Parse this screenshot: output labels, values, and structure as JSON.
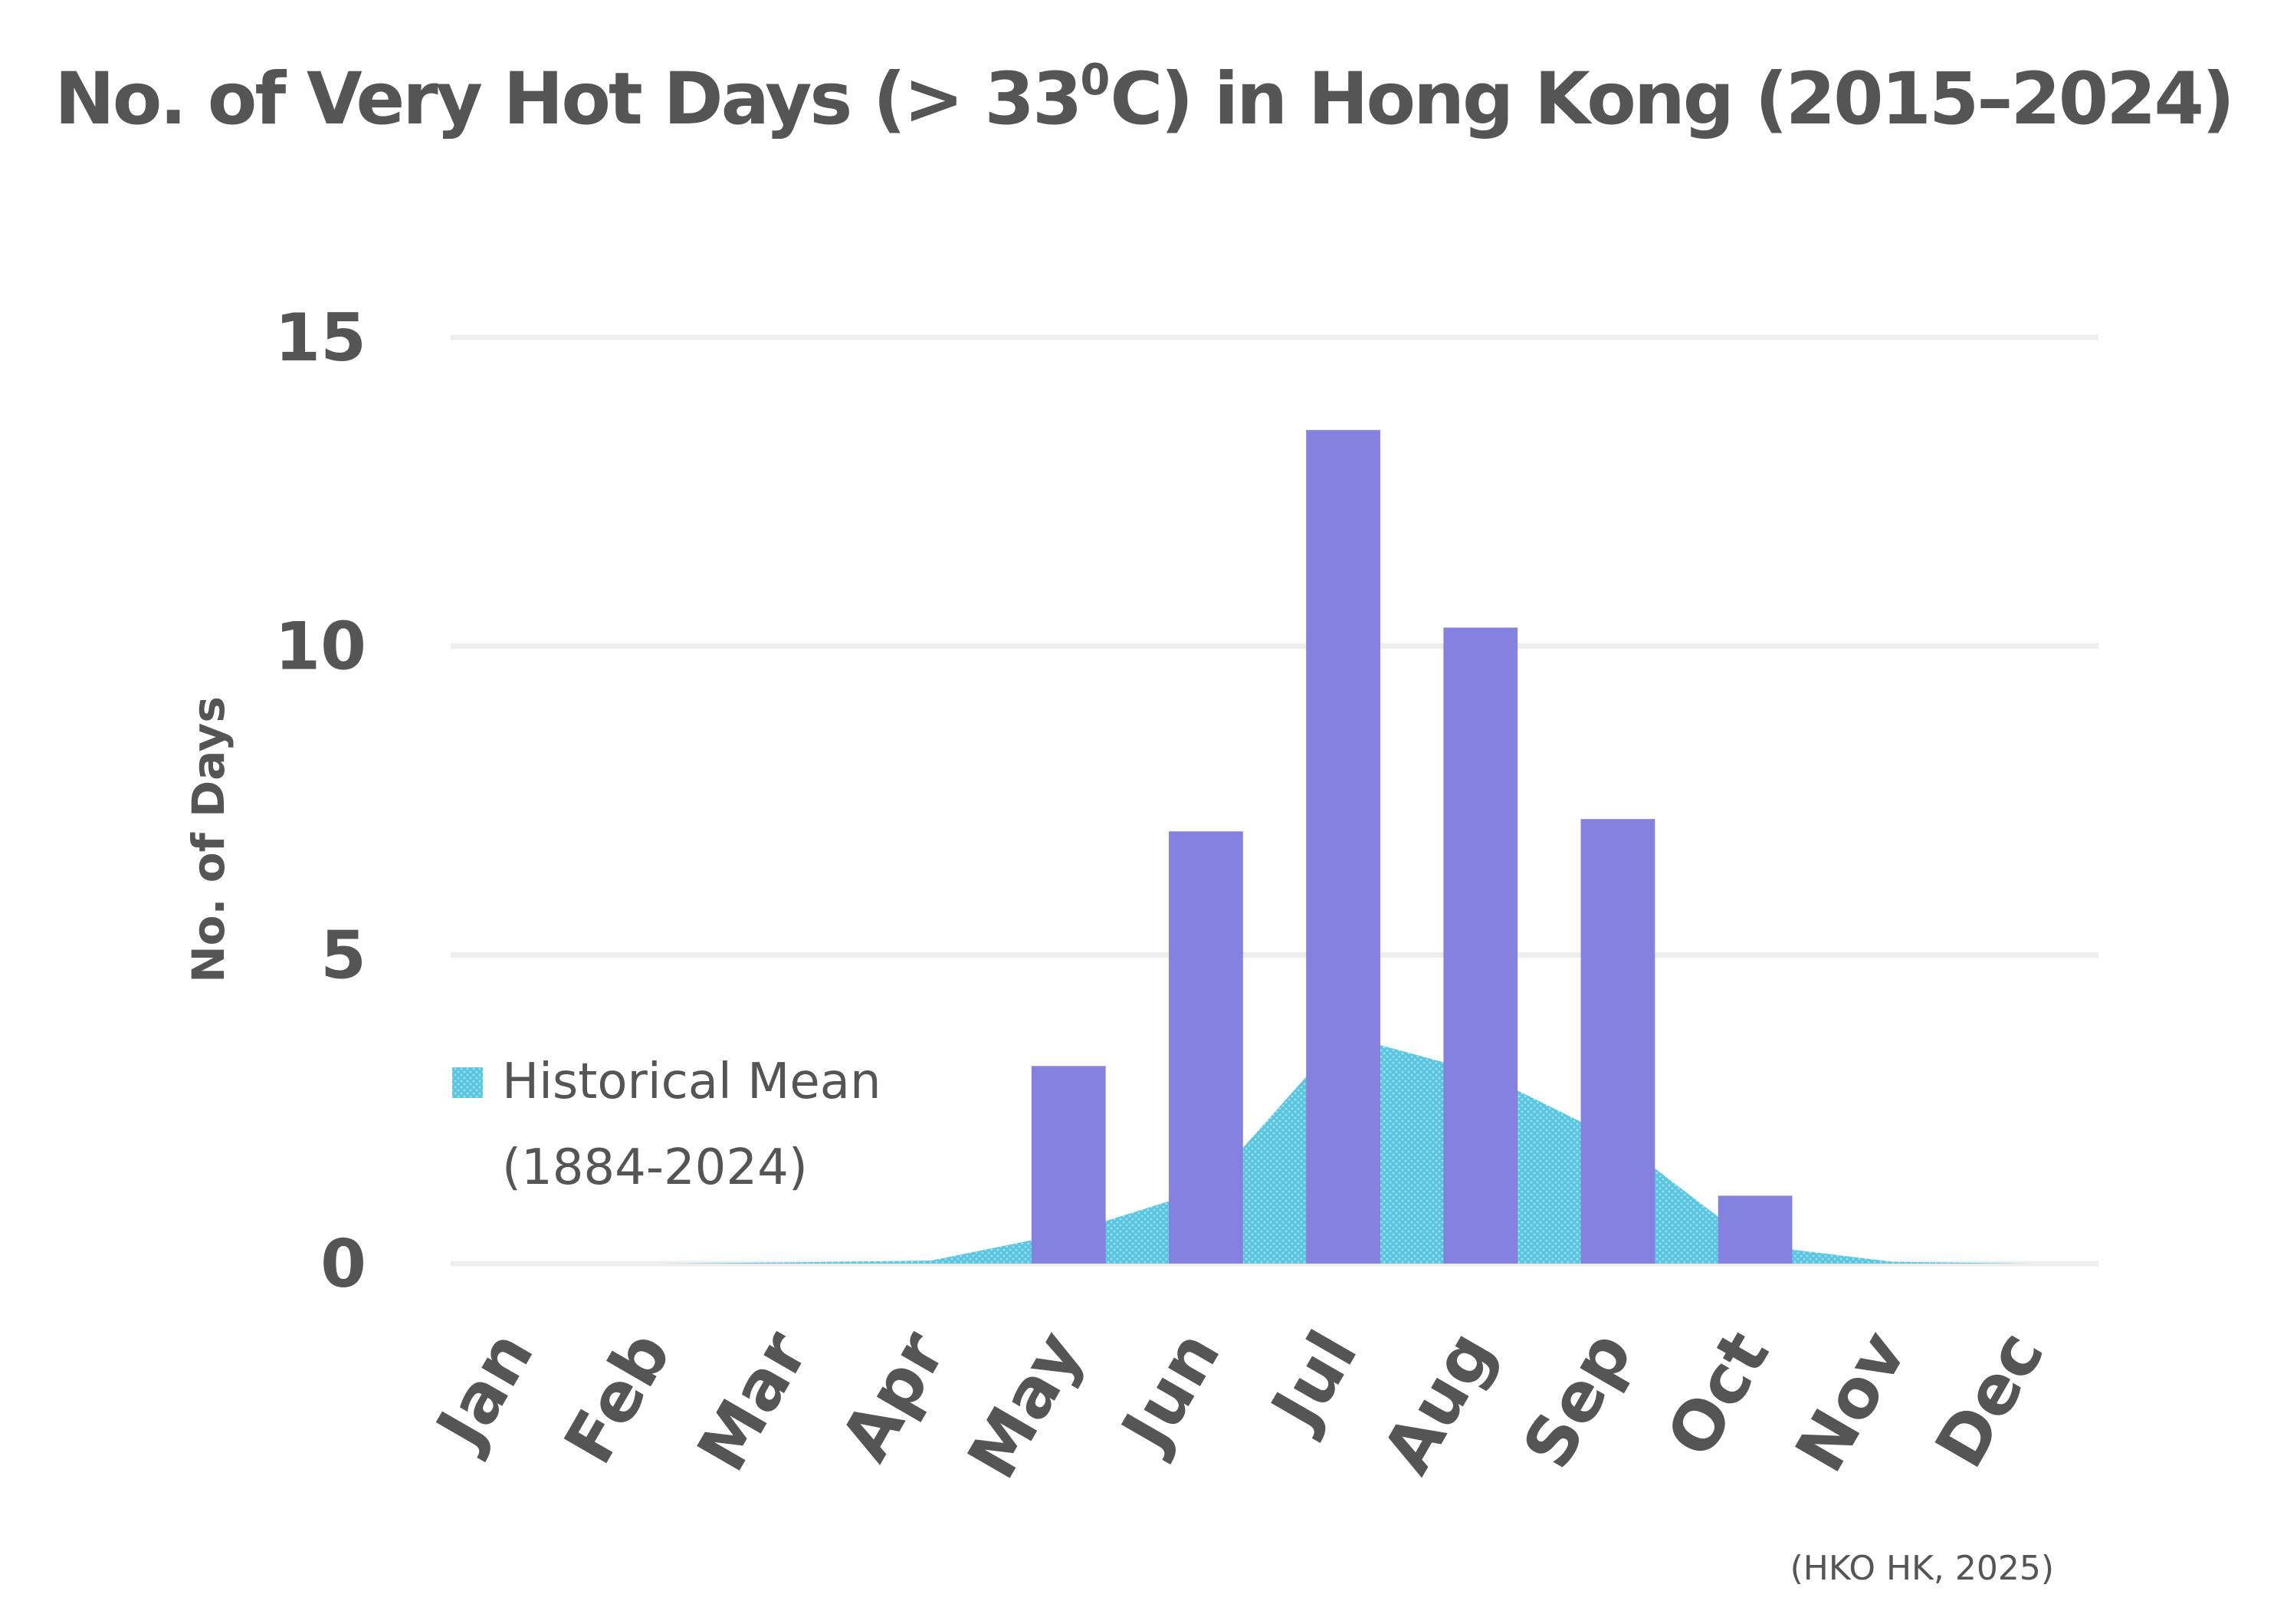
{
  "chart_data": {
    "type": "bar",
    "title": {
      "prefix": "No. of Very Hot Days (> 33",
      "superscript": "0",
      "suffix": "C) in Hong Kong (2015–2024)"
    },
    "xlabel": "",
    "ylabel": "No. of Days",
    "ylim": [
      0,
      15
    ],
    "yticks": [
      "0",
      "5",
      "10",
      "15"
    ],
    "categories": [
      "Jan",
      "Feb",
      "Mar",
      "Apr",
      "May",
      "Jun",
      "Jul",
      "Aug",
      "Sep",
      "Oct",
      "Nov",
      "Dec"
    ],
    "series": [
      {
        "kind": "bar",
        "values": [
          0,
          0,
          0,
          0,
          3.2,
          7.0,
          13.5,
          10.3,
          7.2,
          1.1,
          0,
          0
        ],
        "color": "#8482de"
      },
      {
        "kind": "area",
        "name": "Historical Mean (1884-2024)",
        "legend_lines": [
          "Historical Mean",
          "(1884-2024)"
        ],
        "values": [
          0,
          0,
          0.02,
          0.05,
          0.5,
          1.2,
          3.7,
          3.1,
          2.0,
          0.3,
          0.03,
          0
        ],
        "color": "#5bc6e0"
      }
    ],
    "grid": true,
    "legend_position": "left"
  },
  "source": "(HKO HK, 2025)"
}
